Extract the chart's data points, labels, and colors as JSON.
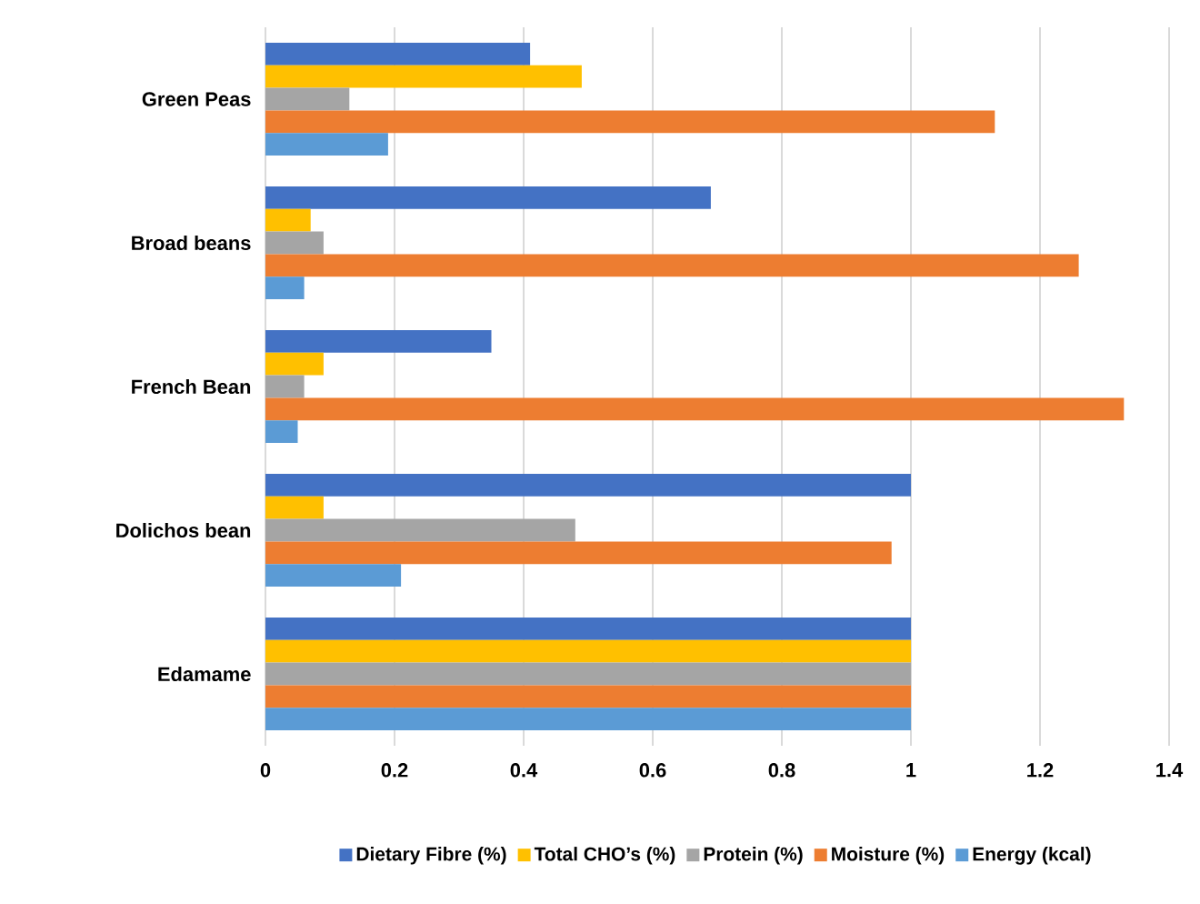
{
  "chart_data": {
    "type": "bar",
    "orientation": "horizontal",
    "categories": [
      "Green Peas",
      "Broad beans",
      "French Bean",
      "Dolichos bean",
      "Edamame"
    ],
    "series": [
      {
        "name": "Dietary Fibre (%)",
        "color": "#4472c4",
        "values": [
          0.41,
          0.69,
          0.35,
          1.0,
          1.0
        ]
      },
      {
        "name": "Total CHO’s (%)",
        "color": "#ffc000",
        "values": [
          0.49,
          0.07,
          0.09,
          0.09,
          1.0
        ]
      },
      {
        "name": "Protein (%)",
        "color": "#a5a5a5",
        "values": [
          0.13,
          0.09,
          0.06,
          0.48,
          1.0
        ]
      },
      {
        "name": "Moisture (%)",
        "color": "#ed7d31",
        "values": [
          1.13,
          1.26,
          1.33,
          0.97,
          1.0
        ]
      },
      {
        "name": "Energy (kcal)",
        "color": "#5b9bd5",
        "values": [
          0.19,
          0.06,
          0.05,
          0.21,
          1.0
        ]
      }
    ],
    "xlim": [
      0,
      1.4
    ],
    "xticks": [
      0,
      0.2,
      0.4,
      0.6,
      0.8,
      1,
      1.2,
      1.4
    ],
    "grid": "x",
    "legend": "bottom"
  }
}
